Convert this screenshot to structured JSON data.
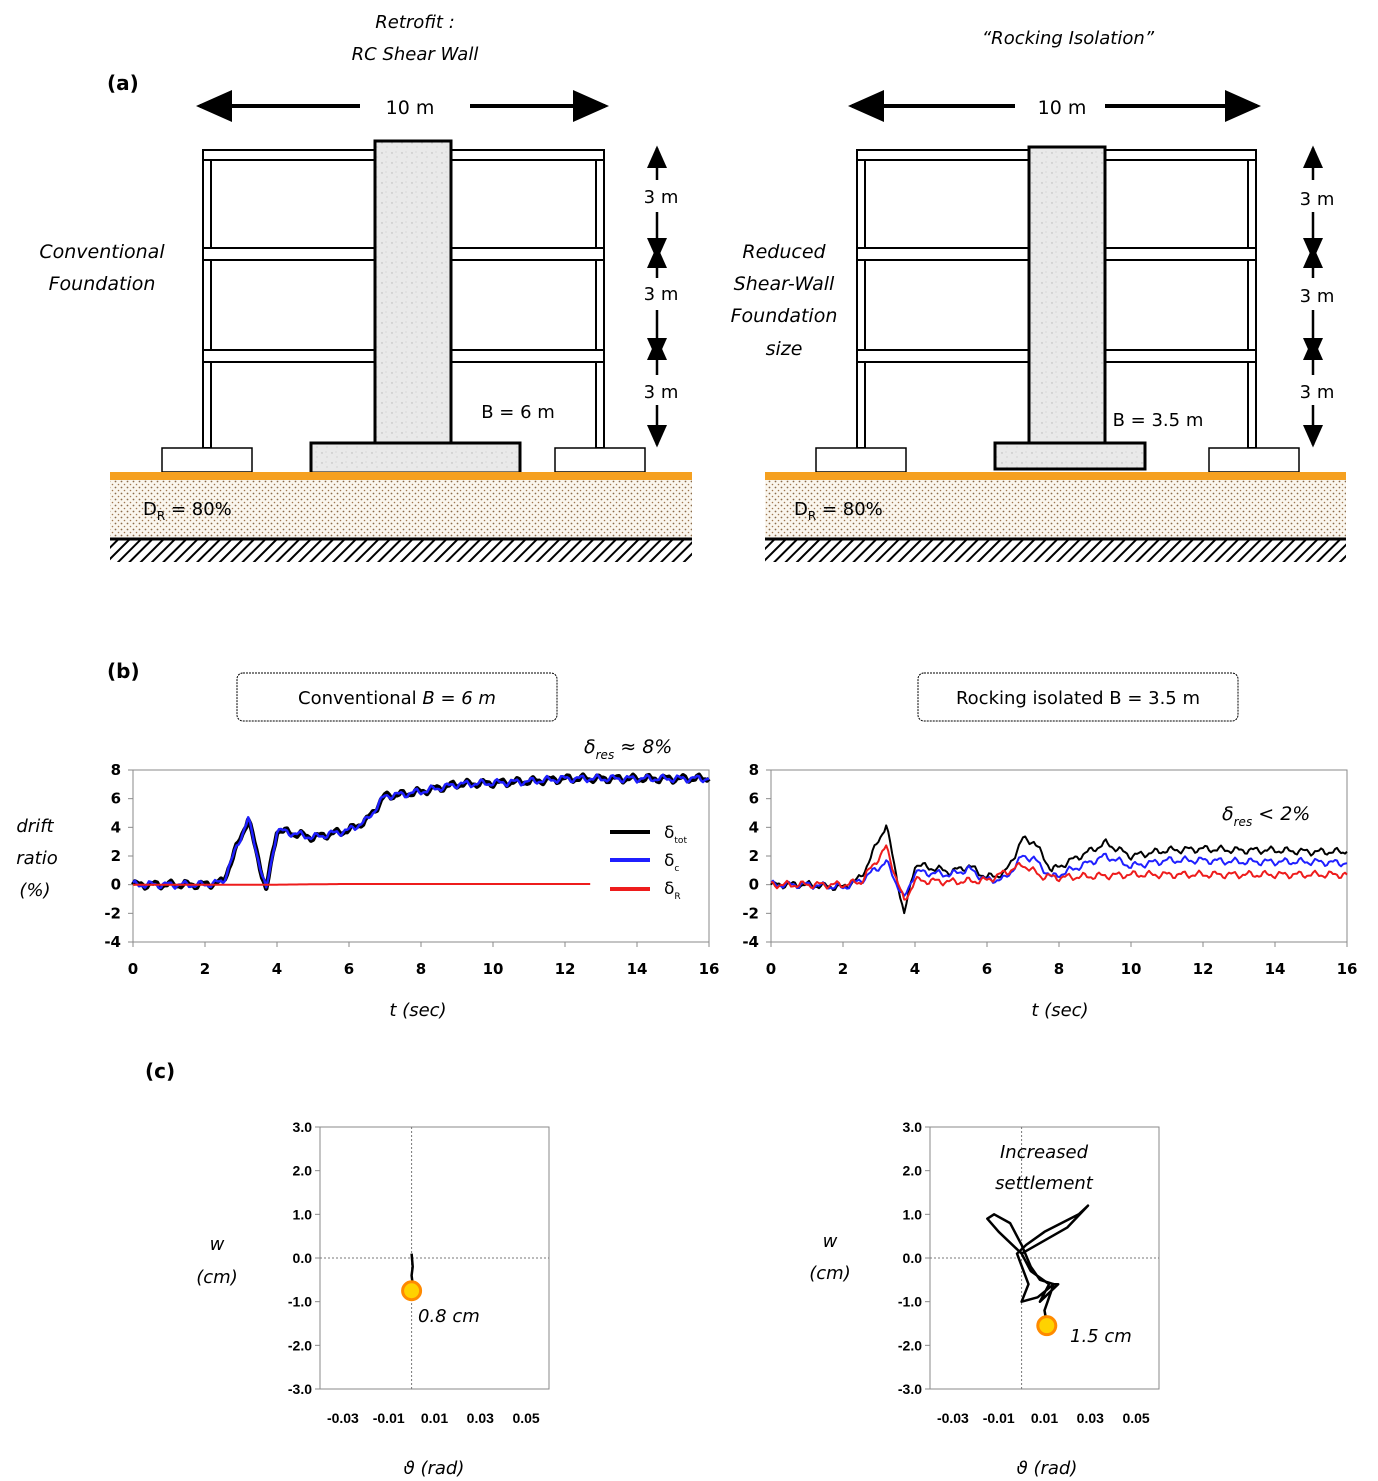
{
  "panel_a": {
    "label": "(a)",
    "left": {
      "title_line1": "Retrofit :",
      "title_line2": "RC Shear  Wall",
      "span": "10 m",
      "foundation_line1": "Conventional",
      "foundation_line2": "Foundation",
      "b_label": "B = 6 m",
      "storey_labels": [
        "3 m",
        "3 m",
        "3 m"
      ],
      "soil_prefix": "D",
      "soil_sub": "R",
      "soil_value": " = 80%"
    },
    "right": {
      "title": "“Rocking Isolation”",
      "span": "10 m",
      "note_lines": [
        "Reduced",
        "Shear-Wall",
        "Foundation",
        "size"
      ],
      "b_label": "B = 3.5 m",
      "storey_labels": [
        "3 m",
        "3 m",
        "3 m"
      ],
      "soil_prefix": "D",
      "soil_sub": "R",
      "soil_value": " = 80%"
    }
  },
  "panel_b": {
    "label": "(b)",
    "left_box": "Conventional  ",
    "left_box_it": "B = 6 m",
    "right_box": "Rocking isolated B = 3.5 m",
    "ylabel_lines": [
      "drift",
      "ratio",
      "(%)"
    ],
    "xlabel": "t (sec)",
    "left_annot_main": "δ",
    "left_annot_sub": "res",
    "left_annot_tail": " ≈ 8%",
    "right_annot_main": "δ",
    "right_annot_sub": "res",
    "right_annot_tail": "  < 2%",
    "legend": [
      {
        "main": "δ",
        "sub": "tot",
        "color": "#000000"
      },
      {
        "main": "δ",
        "sub": "c",
        "color": "#1f1fff"
      },
      {
        "main": "δ",
        "sub": "R",
        "color": "#ee1c1c"
      }
    ],
    "xticks": [
      "0",
      "2",
      "4",
      "6",
      "8",
      "10",
      "12",
      "14",
      "16"
    ],
    "yticks": [
      "8",
      "6",
      "4",
      "2",
      "0",
      "-2",
      "-4"
    ]
  },
  "panel_c": {
    "label": "(c)",
    "ylabel_lines": [
      "w",
      "(cm)"
    ],
    "xlabel": "ϑ (rad)",
    "left_marker": "0.8 cm",
    "right_marker": "1.5 cm",
    "right_note_lines": [
      "Increased",
      "settlement"
    ],
    "yticks": [
      "3.0",
      "2.0",
      "1.0",
      "0.0",
      "-1.0",
      "-2.0",
      "-3.0"
    ],
    "xticks": [
      "-0.03",
      "-0.01",
      "0.01",
      "0.03",
      "0.05"
    ]
  },
  "chart_data": [
    {
      "type": "line",
      "title": "Conventional B = 6 m",
      "xlabel": "t (sec)",
      "ylabel": "drift ratio (%)",
      "xlim": [
        0,
        16
      ],
      "ylim": [
        -4,
        8
      ],
      "series": [
        {
          "name": "δtot",
          "color": "#000000",
          "x": [
            0,
            1,
            2,
            2.5,
            3.2,
            3.7,
            4,
            5,
            6,
            6.5,
            7,
            7.5,
            8,
            9,
            10,
            11,
            12,
            13,
            14,
            15,
            16
          ],
          "y": [
            0,
            0,
            0,
            0.2,
            4.6,
            -0.4,
            3.8,
            3.3,
            3.8,
            4.5,
            6.2,
            6.3,
            6.5,
            7.0,
            7.1,
            7.2,
            7.4,
            7.4,
            7.4,
            7.4,
            7.4
          ]
        },
        {
          "name": "δc",
          "color": "#1f1fff",
          "x": [
            0,
            1,
            2,
            2.5,
            3.2,
            3.7,
            4,
            5,
            6,
            6.5,
            7,
            7.5,
            8,
            9,
            10,
            11,
            12,
            13,
            14,
            15,
            16
          ],
          "y": [
            0,
            0,
            0,
            0.2,
            4.6,
            -0.4,
            3.8,
            3.3,
            3.8,
            4.5,
            6.2,
            6.3,
            6.5,
            7.0,
            7.1,
            7.2,
            7.4,
            7.4,
            7.4,
            7.4,
            7.4
          ]
        },
        {
          "name": "δR",
          "color": "#ee1c1c",
          "x": [
            0,
            2,
            4,
            6,
            8,
            10,
            12,
            12.7
          ],
          "y": [
            0,
            0,
            0,
            0.05,
            0.05,
            0.05,
            0.05,
            0.05
          ]
        }
      ]
    },
    {
      "type": "line",
      "title": "Rocking isolated B = 3.5 m",
      "xlabel": "t (sec)",
      "ylim": [
        -4,
        8
      ],
      "xlim": [
        0,
        16
      ],
      "series": [
        {
          "name": "δtot",
          "color": "#000000",
          "x": [
            0,
            1,
            2,
            2.5,
            3.2,
            3.7,
            4,
            5,
            5.5,
            6,
            6.5,
            7,
            7.3,
            7.8,
            8.5,
            9.3,
            10,
            11,
            12,
            13,
            14,
            15,
            16
          ],
          "y": [
            0,
            0,
            -0.2,
            0.5,
            4.2,
            -2.1,
            1.4,
            0.9,
            1.3,
            0.5,
            0.8,
            3.2,
            3.0,
            1.0,
            1.9,
            2.9,
            2.0,
            2.4,
            2.5,
            2.4,
            2.4,
            2.3,
            2.3
          ]
        },
        {
          "name": "δc",
          "color": "#1f1fff",
          "x": [
            0,
            1,
            2,
            2.5,
            3.2,
            3.7,
            4,
            5,
            5.5,
            6,
            6.5,
            7,
            7.3,
            7.8,
            8.5,
            9.3,
            10,
            11,
            12,
            13,
            14,
            15,
            16
          ],
          "y": [
            0,
            0,
            -0.2,
            0.3,
            1.6,
            -1.0,
            0.9,
            0.7,
            1.1,
            0.3,
            0.4,
            2.0,
            1.8,
            0.5,
            1.2,
            2.0,
            1.3,
            1.7,
            1.7,
            1.6,
            1.6,
            1.6,
            1.5
          ]
        },
        {
          "name": "δR",
          "color": "#ee1c1c",
          "x": [
            0,
            2,
            2.5,
            3.2,
            3.7,
            4,
            5,
            6,
            7,
            7.5,
            8,
            9,
            10,
            12,
            14,
            16
          ],
          "y": [
            0,
            0,
            0.2,
            2.6,
            -1.2,
            0.3,
            0.2,
            0.3,
            1.4,
            0.6,
            0.5,
            0.6,
            0.7,
            0.7,
            0.7,
            0.7
          ]
        }
      ]
    },
    {
      "type": "scatter",
      "title": "",
      "xlabel": "ϑ (rad)",
      "ylabel": "w (cm)",
      "xlim": [
        -0.04,
        0.06
      ],
      "ylim": [
        -3,
        3
      ],
      "series": [
        {
          "name": "",
          "x": [
            0,
            0.0005,
            0,
            0.0005,
            0
          ],
          "y": [
            0.1,
            -0.2,
            -0.4,
            -0.6,
            -0.75
          ]
        }
      ],
      "marker": {
        "x": 0,
        "y": -0.75,
        "label": "0.8 cm"
      }
    },
    {
      "type": "scatter",
      "title": "",
      "xlabel": "ϑ (rad)",
      "ylabel": "w (cm)",
      "xlim": [
        -0.04,
        0.06
      ],
      "ylim": [
        -3,
        3
      ],
      "series": [
        {
          "name": "",
          "x": [
            0,
            -0.01,
            -0.015,
            -0.012,
            -0.005,
            0,
            0.004,
            0.008,
            0.014,
            0.016,
            0.008,
            0.012,
            0.004,
            0,
            0.02,
            0.029,
            0.025,
            0.01,
            0.002,
            -0.002,
            0.003,
            0.0,
            0.007,
            0.014,
            0.01,
            0.011
          ],
          "y": [
            0.1,
            0.6,
            0.9,
            1.0,
            0.8,
            0.3,
            -0.2,
            -0.5,
            -0.6,
            -0.6,
            -1.0,
            -0.6,
            -0.3,
            0.1,
            0.7,
            1.2,
            1.0,
            0.6,
            0.3,
            0.1,
            -0.6,
            -1.0,
            -0.9,
            -0.6,
            -1.2,
            -1.5
          ]
        }
      ],
      "marker": {
        "x": 0.011,
        "y": -1.55,
        "label": "1.5 cm"
      }
    }
  ]
}
